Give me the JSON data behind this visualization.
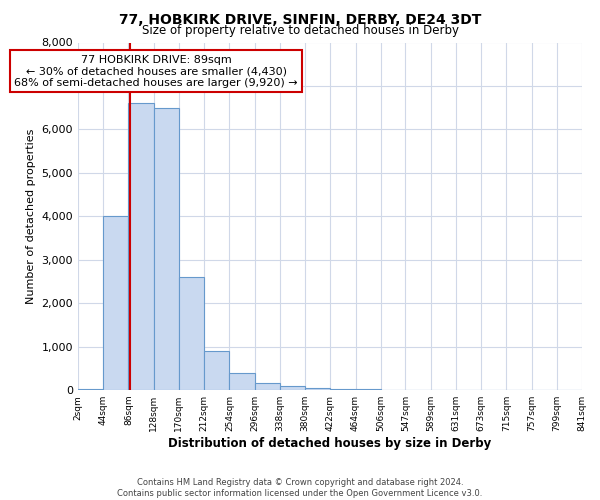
{
  "title1": "77, HOBKIRK DRIVE, SINFIN, DERBY, DE24 3DT",
  "title2": "Size of property relative to detached houses in Derby",
  "xlabel": "Distribution of detached houses by size in Derby",
  "ylabel": "Number of detached properties",
  "bin_edges": [
    2,
    44,
    86,
    128,
    170,
    212,
    254,
    296,
    338,
    380,
    422,
    464,
    506,
    547,
    589,
    631,
    673,
    715,
    757,
    799,
    841
  ],
  "bar_heights": [
    25,
    4000,
    6600,
    6500,
    2600,
    900,
    400,
    150,
    100,
    50,
    30,
    20,
    10,
    5,
    0,
    0,
    0,
    0,
    0,
    0
  ],
  "bar_color": "#c9d9f0",
  "bar_edge_color": "#6699cc",
  "grid_color": "#d0d8e8",
  "property_sqm": 89,
  "property_line_color": "#cc0000",
  "annotation_box_color": "#cc0000",
  "annotation_text_line1": "77 HOBKIRK DRIVE: 89sqm",
  "annotation_text_line2": "← 30% of detached houses are smaller (4,430)",
  "annotation_text_line3": "68% of semi-detached houses are larger (9,920) →",
  "ylim": [
    0,
    8000
  ],
  "yticks": [
    0,
    1000,
    2000,
    3000,
    4000,
    5000,
    6000,
    7000,
    8000
  ],
  "footer_line1": "Contains HM Land Registry data © Crown copyright and database right 2024.",
  "footer_line2": "Contains public sector information licensed under the Open Government Licence v3.0.",
  "background_color": "#ffffff",
  "title1_fontsize": 10,
  "title2_fontsize": 8.5,
  "ylabel_fontsize": 8,
  "xlabel_fontsize": 8.5,
  "annotation_fontsize": 8,
  "ytick_fontsize": 8,
  "xtick_fontsize": 6.5,
  "footer_fontsize": 6
}
